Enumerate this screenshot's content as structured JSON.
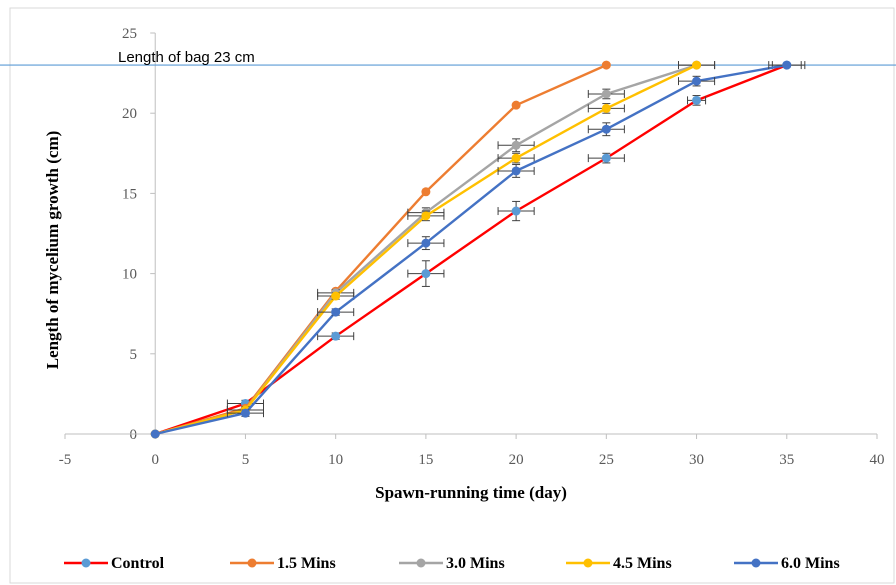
{
  "chart_data": {
    "type": "line",
    "title": "",
    "xlabel": "Spawn-running time (day)",
    "ylabel": "Length of mycelium growth (cm)",
    "xlim": [
      -5,
      40
    ],
    "ylim": [
      0,
      25
    ],
    "x_ticks": [
      "-5",
      "0",
      "5",
      "10",
      "15",
      "20",
      "25",
      "30",
      "35",
      "40"
    ],
    "y_ticks": [
      "0",
      "5",
      "10",
      "15",
      "20",
      "25"
    ],
    "grid": false,
    "legend_position": "bottom",
    "reference_line": {
      "value": 23,
      "label": "Length of bag 23 cm",
      "color": "#5b9bd5"
    },
    "series": [
      {
        "name": "Control",
        "line_color": "#ff0000",
        "marker_color": "#5b9bd5",
        "x": [
          0,
          5,
          10,
          15,
          20,
          25,
          30,
          35
        ],
        "y": [
          0,
          1.9,
          6.1,
          10.0,
          13.9,
          17.2,
          20.8,
          23.0
        ],
        "yerr": [
          0,
          0.2,
          0.2,
          0.8,
          0.6,
          0.3,
          0.3,
          0
        ],
        "xerr": [
          0,
          1,
          1,
          1,
          1,
          1,
          0.5,
          0.8
        ]
      },
      {
        "name": "1.5 Mins",
        "line_color": "#ed7d31",
        "marker_color": "#ed7d31",
        "x": [
          0,
          5,
          10,
          15,
          20,
          25
        ],
        "y": [
          0,
          1.6,
          8.9,
          15.1,
          20.5,
          23.0
        ]
      },
      {
        "name": "3.0 Mins",
        "line_color": "#a5a5a5",
        "marker_color": "#a5a5a5",
        "x": [
          0,
          5,
          10,
          15,
          20,
          25,
          30
        ],
        "y": [
          0,
          1.5,
          8.8,
          13.8,
          18.0,
          21.2,
          23.0
        ],
        "yerr": [
          0,
          0.2,
          0.2,
          0.3,
          0.4,
          0.3,
          0
        ],
        "xerr": [
          0,
          1,
          1,
          1,
          1,
          1,
          1
        ]
      },
      {
        "name": "4.5 Mins",
        "line_color": "#ffc000",
        "marker_color": "#ffc000",
        "x": [
          0,
          5,
          10,
          15,
          20,
          25,
          30
        ],
        "y": [
          0,
          1.5,
          8.6,
          13.6,
          17.2,
          20.3,
          23.0
        ],
        "yerr": [
          0,
          0.2,
          0.2,
          0.3,
          0.3,
          0.3,
          0
        ],
        "xerr": [
          0,
          1,
          1,
          1,
          1,
          1,
          1
        ]
      },
      {
        "name": "6.0 Mins",
        "line_color": "#4472c4",
        "marker_color": "#4472c4",
        "x": [
          0,
          5,
          10,
          15,
          20,
          25,
          30,
          35
        ],
        "y": [
          0,
          1.3,
          7.6,
          11.9,
          16.4,
          19.0,
          22.0,
          23.0
        ],
        "yerr": [
          0,
          0.2,
          0.2,
          0.4,
          0.4,
          0.4,
          0.3,
          0
        ],
        "xerr": [
          0,
          1,
          1,
          1,
          1,
          1,
          1,
          1
        ]
      }
    ]
  }
}
